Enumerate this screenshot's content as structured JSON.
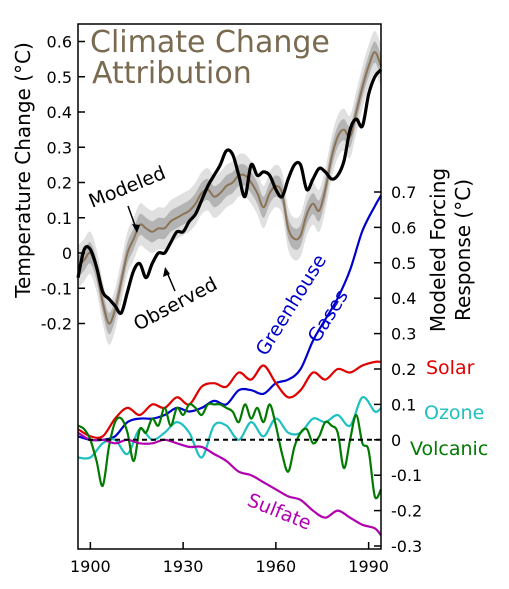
{
  "colors": {
    "title": "#7a6a4f",
    "modeled": "#8b7355",
    "observed": "#000000",
    "band_outer": "#e0e0e0",
    "band_inner": "#b4b4b4",
    "greenhouse": "#0000cc",
    "solar": "#e00000",
    "ozone": "#20c0c0",
    "volcanic": "#007a00",
    "sulfate": "#b000b0"
  },
  "chart_data": [
    {
      "type": "line",
      "title": "Climate Change Attribution",
      "ylabel": "Temperature Change (°C)",
      "xlabel": "",
      "xlim": [
        1896,
        1994
      ],
      "ylim": [
        -0.2,
        0.6
      ],
      "yticks": [
        "0.6",
        "0.5",
        "0.4",
        "0.3",
        "0.2",
        "0.1",
        "0",
        "-0.1",
        "-0.2"
      ],
      "series": [
        {
          "name": "Modeled",
          "color_key": "modeled",
          "x": [
            1896,
            1898,
            1900,
            1902,
            1904,
            1906,
            1908,
            1910,
            1912,
            1914,
            1916,
            1918,
            1920,
            1922,
            1924,
            1926,
            1928,
            1930,
            1932,
            1934,
            1936,
            1938,
            1940,
            1942,
            1944,
            1946,
            1948,
            1950,
            1952,
            1954,
            1956,
            1958,
            1960,
            1962,
            1964,
            1966,
            1968,
            1970,
            1972,
            1974,
            1976,
            1978,
            1980,
            1982,
            1984,
            1986,
            1988,
            1990,
            1992,
            1994
          ],
          "values": [
            -0.04,
            -0.02,
            0.0,
            -0.05,
            -0.14,
            -0.2,
            -0.16,
            -0.08,
            0.0,
            0.04,
            0.08,
            0.07,
            0.06,
            0.07,
            0.07,
            0.09,
            0.1,
            0.11,
            0.12,
            0.14,
            0.17,
            0.18,
            0.16,
            0.17,
            0.19,
            0.2,
            0.22,
            0.22,
            0.2,
            0.17,
            0.13,
            0.17,
            0.19,
            0.17,
            0.07,
            0.04,
            0.05,
            0.11,
            0.14,
            0.12,
            0.18,
            0.27,
            0.33,
            0.35,
            0.33,
            0.4,
            0.47,
            0.53,
            0.57,
            0.53
          ],
          "band_inner": 0.03,
          "band_outer": 0.06
        },
        {
          "name": "Observed",
          "color_key": "observed",
          "x": [
            1896,
            1898,
            1900,
            1902,
            1904,
            1906,
            1908,
            1910,
            1912,
            1914,
            1916,
            1918,
            1920,
            1922,
            1924,
            1926,
            1928,
            1930,
            1932,
            1934,
            1936,
            1938,
            1940,
            1942,
            1944,
            1946,
            1948,
            1950,
            1952,
            1954,
            1956,
            1958,
            1960,
            1962,
            1964,
            1966,
            1968,
            1970,
            1972,
            1974,
            1976,
            1978,
            1980,
            1982,
            1984,
            1986,
            1988,
            1990,
            1992,
            1994
          ],
          "values": [
            -0.07,
            0.01,
            0.01,
            -0.04,
            -0.11,
            -0.13,
            -0.15,
            -0.17,
            -0.11,
            -0.05,
            -0.03,
            -0.07,
            -0.03,
            0.0,
            0.0,
            0.03,
            0.06,
            0.06,
            0.09,
            0.11,
            0.15,
            0.19,
            0.22,
            0.25,
            0.29,
            0.28,
            0.22,
            0.16,
            0.25,
            0.22,
            0.23,
            0.22,
            0.18,
            0.16,
            0.21,
            0.25,
            0.25,
            0.18,
            0.21,
            0.24,
            0.23,
            0.21,
            0.22,
            0.26,
            0.35,
            0.38,
            0.36,
            0.45,
            0.5,
            0.52
          ],
          "band_inner": 0,
          "band_outer": 0
        }
      ],
      "annotations": [
        "Modeled",
        "Observed"
      ]
    },
    {
      "type": "line",
      "title": "",
      "ylabel": "Modeled Forcing Response (°C)",
      "xlabel": "",
      "xlim": [
        1896,
        1994
      ],
      "ylim": [
        -0.3,
        0.7
      ],
      "yticks": [
        "0.7",
        "0.6",
        "0.5",
        "0.4",
        "0.3",
        "0.2",
        "0.1",
        "0",
        "-0.1",
        "-0.2",
        "-0.3"
      ],
      "xticks": [
        "1900",
        "1930",
        "1960",
        "1990"
      ],
      "xtick_values": [
        1900,
        1930,
        1960,
        1990
      ],
      "zero_line": true,
      "series": [
        {
          "name": "Greenhouse Gases",
          "color_key": "greenhouse",
          "x": [
            1896,
            1900,
            1904,
            1908,
            1912,
            1916,
            1920,
            1924,
            1928,
            1932,
            1936,
            1940,
            1944,
            1948,
            1952,
            1956,
            1960,
            1964,
            1968,
            1972,
            1976,
            1980,
            1984,
            1988,
            1992,
            1994
          ],
          "values": [
            0.01,
            0.0,
            0.0,
            0.01,
            0.05,
            0.06,
            0.06,
            0.07,
            0.09,
            0.08,
            0.09,
            0.11,
            0.1,
            0.14,
            0.14,
            0.13,
            0.16,
            0.17,
            0.2,
            0.28,
            0.34,
            0.4,
            0.48,
            0.59,
            0.66,
            0.69
          ]
        },
        {
          "name": "Solar",
          "color_key": "solar",
          "x": [
            1896,
            1900,
            1904,
            1908,
            1912,
            1916,
            1920,
            1924,
            1928,
            1932,
            1936,
            1940,
            1944,
            1948,
            1952,
            1956,
            1960,
            1964,
            1968,
            1972,
            1976,
            1980,
            1984,
            1988,
            1992,
            1994
          ],
          "values": [
            0.03,
            0.01,
            0.01,
            0.06,
            0.09,
            0.07,
            0.1,
            0.09,
            0.12,
            0.1,
            0.15,
            0.16,
            0.15,
            0.19,
            0.17,
            0.21,
            0.16,
            0.12,
            0.14,
            0.19,
            0.17,
            0.2,
            0.19,
            0.21,
            0.22,
            0.22
          ]
        },
        {
          "name": "Ozone",
          "color_key": "ozone",
          "x": [
            1896,
            1900,
            1904,
            1908,
            1912,
            1916,
            1920,
            1924,
            1928,
            1932,
            1936,
            1940,
            1944,
            1948,
            1952,
            1956,
            1960,
            1964,
            1968,
            1972,
            1976,
            1980,
            1984,
            1988,
            1992,
            1994
          ],
          "values": [
            -0.05,
            -0.05,
            -0.01,
            0.0,
            -0.04,
            0.03,
            0.0,
            0.02,
            0.05,
            0.02,
            -0.05,
            0.04,
            0.04,
            0.0,
            0.05,
            0.01,
            0.06,
            0.02,
            0.02,
            0.06,
            0.05,
            0.07,
            0.04,
            0.12,
            0.08,
            0.09
          ]
        },
        {
          "name": "Volcanic",
          "color_key": "volcanic",
          "x": [
            1896,
            1898,
            1900,
            1902,
            1904,
            1906,
            1908,
            1910,
            1912,
            1914,
            1916,
            1918,
            1920,
            1922,
            1924,
            1926,
            1928,
            1930,
            1932,
            1934,
            1936,
            1938,
            1940,
            1942,
            1944,
            1946,
            1948,
            1950,
            1952,
            1954,
            1956,
            1958,
            1960,
            1962,
            1964,
            1966,
            1968,
            1970,
            1972,
            1974,
            1976,
            1978,
            1980,
            1982,
            1984,
            1986,
            1988,
            1990,
            1992,
            1994
          ],
          "values": [
            0.04,
            0.03,
            0.0,
            -0.06,
            -0.13,
            -0.02,
            0.05,
            0.06,
            0.02,
            -0.06,
            0.03,
            0.02,
            0.06,
            0.04,
            0.09,
            0.04,
            0.09,
            0.07,
            0.1,
            0.09,
            0.07,
            0.1,
            0.1,
            0.1,
            0.09,
            0.08,
            0.05,
            0.1,
            0.06,
            0.09,
            0.05,
            0.1,
            0.04,
            -0.04,
            -0.09,
            -0.02,
            0.02,
            0.03,
            -0.01,
            0.01,
            0.05,
            0.04,
            0.02,
            -0.08,
            0.0,
            0.07,
            -0.01,
            -0.03,
            -0.16,
            -0.14
          ]
        },
        {
          "name": "Sulfate",
          "color_key": "sulfate",
          "x": [
            1896,
            1900,
            1904,
            1908,
            1912,
            1916,
            1920,
            1924,
            1928,
            1932,
            1936,
            1940,
            1944,
            1948,
            1952,
            1956,
            1960,
            1964,
            1968,
            1972,
            1976,
            1980,
            1984,
            1988,
            1992,
            1994
          ],
          "values": [
            0.02,
            0.0,
            0.0,
            -0.01,
            0.0,
            -0.01,
            -0.01,
            0.0,
            -0.01,
            -0.02,
            -0.02,
            -0.04,
            -0.06,
            -0.09,
            -0.1,
            -0.12,
            -0.14,
            -0.16,
            -0.17,
            -0.2,
            -0.22,
            -0.2,
            -0.22,
            -0.24,
            -0.25,
            -0.27
          ]
        }
      ],
      "labels": {
        "greenhouse_line1": "Greenhouse",
        "greenhouse_line2": "Gases",
        "solar": "Solar",
        "ozone": "Ozone",
        "volcanic": "Volcanic",
        "sulfate": "Sulfate"
      }
    }
  ]
}
